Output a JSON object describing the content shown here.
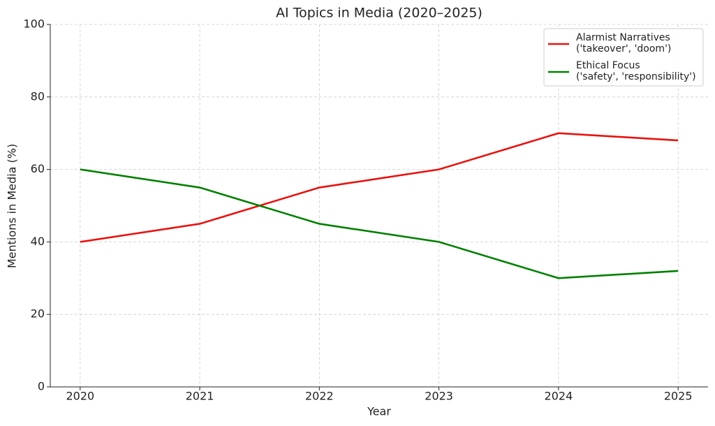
{
  "chart_data": {
    "type": "line",
    "title": "AI Topics in Media (2020–2025)",
    "x_label": "Year",
    "y_label": "Mentions in Media (%)",
    "x": [
      2020,
      2021,
      2022,
      2023,
      2024,
      2025
    ],
    "series": [
      {
        "name": "Alarmist Narratives\n('takeover', 'doom')",
        "color": "#e8120f",
        "values": [
          40,
          45,
          55,
          60,
          70,
          68
        ]
      },
      {
        "name": "Ethical Focus\n('safety', 'responsibility')",
        "color": "#008000",
        "values": [
          60,
          55,
          45,
          40,
          30,
          32
        ]
      }
    ],
    "xlim": [
      2019.75,
      2025.25
    ],
    "xticks": [
      2020,
      2021,
      2022,
      2023,
      2024,
      2025
    ],
    "ylim": [
      0,
      100
    ],
    "yticks": [
      0,
      20,
      40,
      60,
      80,
      100
    ],
    "grid": true,
    "legend": "upper right"
  }
}
